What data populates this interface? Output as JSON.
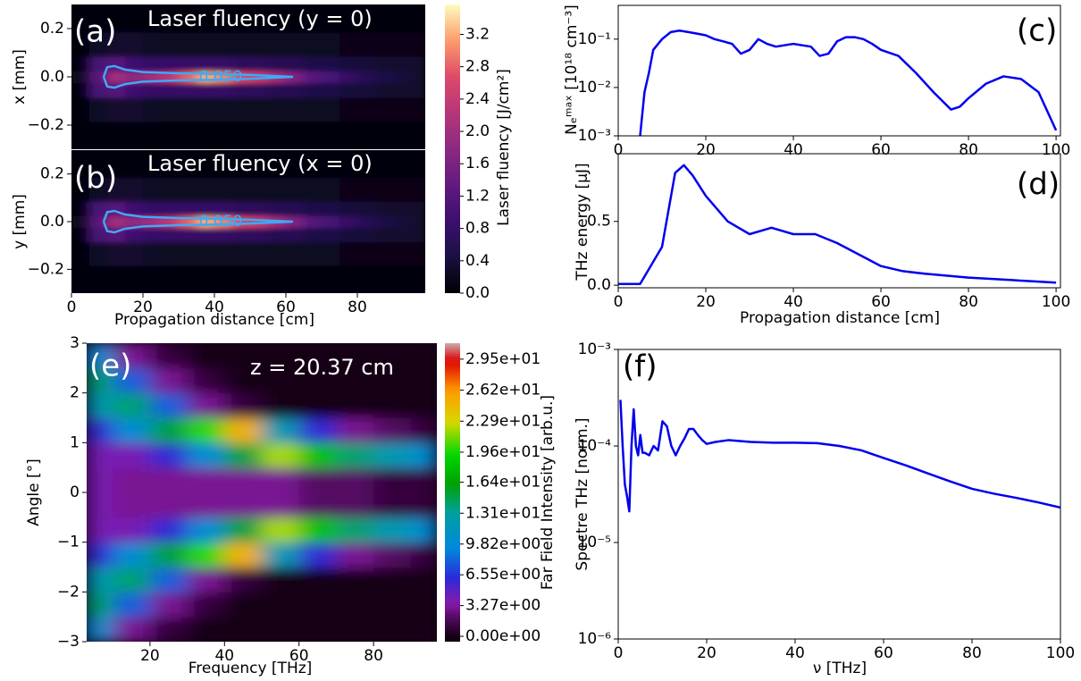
{
  "chart_data": [
    {
      "type": "heatmap",
      "panel_label": "(a)",
      "title": "Laser fluency (y = 0)",
      "ylabel": "x [mm]",
      "xlim": [
        0,
        99
      ],
      "ylim": [
        -0.3,
        0.3
      ],
      "yticks": [
        0.2,
        {
          "value": 0,
          "label": "0.0"
        },
        {
          "value": -0.2,
          "label": "−0.2"
        }
      ],
      "x": [
        2.5,
        7.5,
        12.5,
        17.5,
        22.5,
        27.5,
        32.5,
        37.5,
        42.5,
        47.5,
        52.5,
        57.5,
        62.5,
        67.5,
        72.5,
        77.5,
        82.5,
        87.5,
        92.5,
        97.5
      ],
      "y": [
        -0.25,
        -0.12,
        -0.05,
        0,
        0.05,
        0.12,
        0.25
      ],
      "z": [
        [
          0.02,
          0.05,
          0.05,
          0.05,
          0.05,
          0.05,
          0.05,
          0.05,
          0.05,
          0.05,
          0.05,
          0.05,
          0.05,
          0.05,
          0.05,
          0.05,
          0.05,
          0.05,
          0.05,
          0.05
        ],
        [
          0.05,
          0.25,
          0.3,
          0.3,
          0.25,
          0.2,
          0.2,
          0.2,
          0.2,
          0.2,
          0.2,
          0.2,
          0.2,
          0.2,
          0.2,
          0.15,
          0.15,
          0.15,
          0.15,
          0.15
        ],
        [
          0.1,
          1.0,
          1.2,
          0.9,
          0.8,
          0.8,
          0.8,
          0.8,
          0.8,
          0.7,
          0.7,
          0.6,
          0.6,
          0.5,
          0.5,
          0.4,
          0.4,
          0.3,
          0.3,
          0.3
        ],
        [
          0.2,
          1.2,
          2.0,
          1.8,
          2.0,
          2.3,
          2.8,
          3.2,
          3.0,
          2.6,
          2.4,
          2.0,
          1.6,
          1.2,
          1.0,
          0.8,
          0.6,
          0.5,
          0.4,
          0.3
        ],
        [
          0.1,
          1.0,
          1.2,
          0.9,
          0.8,
          0.8,
          0.8,
          0.8,
          0.8,
          0.7,
          0.7,
          0.6,
          0.6,
          0.5,
          0.5,
          0.4,
          0.4,
          0.3,
          0.3,
          0.3
        ],
        [
          0.05,
          0.25,
          0.3,
          0.3,
          0.25,
          0.2,
          0.2,
          0.2,
          0.2,
          0.2,
          0.2,
          0.2,
          0.2,
          0.2,
          0.2,
          0.15,
          0.15,
          0.15,
          0.15,
          0.15
        ],
        [
          0.02,
          0.05,
          0.05,
          0.05,
          0.05,
          0.05,
          0.05,
          0.05,
          0.05,
          0.05,
          0.05,
          0.05,
          0.05,
          0.05,
          0.05,
          0.05,
          0.05,
          0.05,
          0.05,
          0.05
        ]
      ],
      "colormap": "magma",
      "clim": [
        0,
        3.57
      ],
      "contour": {
        "level": {
          "value": 0.05,
          "label": "0.050"
        },
        "color": "#3fa9f5",
        "x": [
          9,
          10,
          12,
          15,
          20,
          30,
          40,
          50,
          62,
          50,
          40,
          30,
          20,
          15,
          12,
          10,
          9
        ],
        "y": [
          0,
          0.04,
          0.045,
          0.03,
          0.02,
          0.015,
          0.012,
          0.008,
          0,
          -0.008,
          -0.012,
          -0.015,
          -0.02,
          -0.03,
          -0.045,
          -0.04,
          0
        ]
      },
      "colorbar": {
        "label": "Laser fluency [J/cm²]",
        "ticks": [
          {
            "value": 0,
            "label": "0.0"
          },
          0.4,
          0.8,
          1.2,
          1.6,
          {
            "value": 2,
            "label": "2.0"
          },
          2.4,
          2.8,
          3.2
        ]
      }
    },
    {
      "type": "heatmap",
      "panel_label": "(b)",
      "title": "Laser fluency (x = 0)",
      "ylabel": "y [mm]",
      "xlabel": "Propagation distance [cm]",
      "xlim": [
        0,
        99
      ],
      "ylim": [
        -0.3,
        0.3
      ],
      "xticks": [
        0,
        20,
        40,
        60,
        80
      ],
      "yticks": [
        0.2,
        {
          "value": 0,
          "label": "0.0"
        },
        {
          "value": -0.2,
          "label": "−0.2"
        }
      ],
      "x": [
        2.5,
        7.5,
        12.5,
        17.5,
        22.5,
        27.5,
        32.5,
        37.5,
        42.5,
        47.5,
        52.5,
        57.5,
        62.5,
        67.5,
        72.5,
        77.5,
        82.5,
        87.5,
        92.5,
        97.5
      ],
      "y": [
        -0.25,
        -0.12,
        -0.05,
        0,
        0.05,
        0.12,
        0.25
      ],
      "z": [
        [
          0.02,
          0.05,
          0.05,
          0.05,
          0.05,
          0.05,
          0.05,
          0.05,
          0.05,
          0.05,
          0.05,
          0.05,
          0.05,
          0.05,
          0.05,
          0.05,
          0.05,
          0.05,
          0.05,
          0.05
        ],
        [
          0.05,
          0.25,
          0.3,
          0.3,
          0.25,
          0.2,
          0.2,
          0.2,
          0.2,
          0.2,
          0.2,
          0.2,
          0.2,
          0.2,
          0.2,
          0.15,
          0.15,
          0.15,
          0.15,
          0.15
        ],
        [
          0.1,
          1.0,
          1.2,
          0.9,
          0.8,
          0.8,
          0.8,
          0.8,
          0.8,
          0.7,
          0.7,
          0.6,
          0.6,
          0.5,
          0.5,
          0.4,
          0.4,
          0.3,
          0.3,
          0.3
        ],
        [
          0.2,
          1.2,
          2.0,
          1.8,
          2.0,
          2.3,
          2.8,
          3.2,
          3.0,
          2.6,
          2.4,
          2.0,
          1.6,
          1.2,
          1.0,
          0.8,
          0.6,
          0.5,
          0.4,
          0.3
        ],
        [
          0.1,
          1.0,
          1.2,
          0.9,
          0.8,
          0.8,
          0.8,
          0.8,
          0.8,
          0.7,
          0.7,
          0.6,
          0.6,
          0.5,
          0.5,
          0.4,
          0.4,
          0.3,
          0.3,
          0.3
        ],
        [
          0.05,
          0.25,
          0.3,
          0.3,
          0.25,
          0.2,
          0.2,
          0.2,
          0.2,
          0.2,
          0.2,
          0.2,
          0.2,
          0.2,
          0.2,
          0.15,
          0.15,
          0.15,
          0.15,
          0.15
        ],
        [
          0.02,
          0.05,
          0.05,
          0.05,
          0.05,
          0.05,
          0.05,
          0.05,
          0.05,
          0.05,
          0.05,
          0.05,
          0.05,
          0.05,
          0.05,
          0.05,
          0.05,
          0.05,
          0.05,
          0.05
        ]
      ],
      "colormap": "magma",
      "clim": [
        0,
        3.57
      ],
      "contour": {
        "level": {
          "value": 0.05,
          "label": "0.050"
        },
        "color": "#3fa9f5",
        "x": [
          9,
          10,
          12,
          15,
          20,
          30,
          40,
          50,
          62,
          50,
          40,
          30,
          20,
          15,
          12,
          10,
          9
        ],
        "y": [
          0,
          0.04,
          0.045,
          0.03,
          0.02,
          0.015,
          0.012,
          0.008,
          0,
          -0.008,
          -0.012,
          -0.015,
          -0.02,
          -0.03,
          -0.045,
          -0.04,
          0
        ]
      }
    },
    {
      "type": "line",
      "panel_label": "(c)",
      "ylabel": "Nₑᵐᵃˣ [10¹⁸ cm⁻³]",
      "ylog": true,
      "xlim": [
        0,
        101
      ],
      "ylim": [
        0.001,
        0.5
      ],
      "xticks": [
        0,
        20,
        40,
        60,
        80,
        100
      ],
      "yticks": [
        {
          "value": 0.001,
          "label": "10⁻³"
        },
        {
          "value": 0.01,
          "label": "10⁻²"
        },
        {
          "value": 0.1,
          "label": "10⁻¹"
        }
      ],
      "color": "#0000ee",
      "x": [
        4,
        5,
        6,
        7,
        8,
        10,
        12,
        14,
        16,
        18,
        20,
        22,
        24,
        26,
        28,
        30,
        32,
        34,
        36,
        40,
        44,
        46,
        48,
        50,
        52,
        54,
        56,
        58,
        60,
        64,
        68,
        72,
        76,
        78,
        80,
        84,
        88,
        92,
        96,
        100
      ],
      "values": [
        0.0008,
        0.001,
        0.008,
        0.02,
        0.06,
        0.1,
        0.14,
        0.15,
        0.14,
        0.13,
        0.12,
        0.1,
        0.09,
        0.08,
        0.05,
        0.06,
        0.1,
        0.08,
        0.07,
        0.08,
        0.07,
        0.045,
        0.05,
        0.09,
        0.11,
        0.11,
        0.1,
        0.08,
        0.06,
        0.045,
        0.02,
        0.008,
        0.0035,
        0.004,
        0.006,
        0.012,
        0.017,
        0.015,
        0.008,
        0.0013
      ]
    },
    {
      "type": "line",
      "panel_label": "(d)",
      "ylabel": "THz energy [μJ]",
      "xlabel": "Propagation distance [cm]",
      "xlim": [
        0,
        101
      ],
      "ylim": [
        -0.02,
        1.03
      ],
      "xticks": [
        0,
        20,
        40,
        60,
        80,
        100
      ],
      "yticks": [
        {
          "value": 0,
          "label": "0.0"
        },
        0.5
      ],
      "color": "#0000ee",
      "x": [
        0,
        5,
        10,
        13,
        15,
        17,
        20,
        25,
        30,
        35,
        40,
        45,
        50,
        55,
        60,
        65,
        70,
        80,
        90,
        100
      ],
      "values": [
        0.01,
        0.01,
        0.3,
        0.88,
        0.94,
        0.86,
        0.7,
        0.5,
        0.4,
        0.45,
        0.4,
        0.4,
        0.33,
        0.24,
        0.15,
        0.11,
        0.09,
        0.06,
        0.04,
        0.02
      ]
    },
    {
      "type": "heatmap",
      "panel_label": "(e)",
      "annotation": "z = 20.37 cm",
      "ylabel": "Angle [°]",
      "xlabel": "Frequency [THz]",
      "xlim": [
        3,
        97
      ],
      "ylim": [
        -3,
        3
      ],
      "xticks": [
        20,
        40,
        60,
        80
      ],
      "yticks": [
        3,
        2,
        1,
        0,
        {
          "value": -1,
          "label": "−1"
        },
        {
          "value": -2,
          "label": "−2"
        },
        {
          "value": -3,
          "label": "−3"
        }
      ],
      "x": [
        5,
        15,
        25,
        35,
        45,
        55,
        65,
        75,
        85,
        95
      ],
      "y": [
        -2.75,
        -2.25,
        -1.75,
        -1.25,
        -0.75,
        -0.25,
        0.25,
        0.75,
        1.25,
        1.75,
        2.25,
        2.75
      ],
      "z": [
        [
          10,
          3,
          1,
          0,
          0,
          0,
          0,
          0,
          0,
          0
        ],
        [
          14,
          8,
          3,
          1,
          0,
          0,
          0,
          0,
          0,
          0
        ],
        [
          12,
          14,
          8,
          3,
          1,
          0,
          0,
          0,
          0,
          0
        ],
        [
          6,
          10,
          15,
          20,
          25,
          12,
          6,
          3,
          2,
          1
        ],
        [
          4,
          4,
          6,
          10,
          15,
          22,
          18,
          14,
          12,
          10
        ],
        [
          4,
          3,
          3,
          3,
          3,
          3,
          2,
          2,
          1,
          1
        ],
        [
          4,
          3,
          3,
          3,
          3,
          3,
          2,
          2,
          1,
          1
        ],
        [
          4,
          4,
          6,
          10,
          15,
          22,
          18,
          14,
          12,
          10
        ],
        [
          6,
          10,
          15,
          20,
          25,
          12,
          6,
          3,
          2,
          1
        ],
        [
          12,
          14,
          8,
          3,
          1,
          0,
          0,
          0,
          0,
          0
        ],
        [
          14,
          8,
          3,
          1,
          0,
          0,
          0,
          0,
          0,
          0
        ],
        [
          10,
          3,
          1,
          0,
          0,
          0,
          0,
          0,
          0,
          0
        ]
      ],
      "colormap": "nipy_spectral",
      "clim": [
        0,
        31.2
      ],
      "colorbar": {
        "label": "Far Field Intensity [arb.u.]",
        "ticks": [
          {
            "value": 0,
            "label": "0.00e+00"
          },
          {
            "value": 3.27,
            "label": "3.27e+00"
          },
          {
            "value": 6.55,
            "label": "6.55e+00"
          },
          {
            "value": 9.82,
            "label": "9.82e+00"
          },
          {
            "value": 13.1,
            "label": "1.31e+01"
          },
          {
            "value": 16.4,
            "label": "1.64e+01"
          },
          {
            "value": 19.6,
            "label": "1.96e+01"
          },
          {
            "value": 22.9,
            "label": "2.29e+01"
          },
          {
            "value": 26.2,
            "label": "2.62e+01"
          },
          {
            "value": 29.5,
            "label": "2.95e+01"
          }
        ]
      }
    },
    {
      "type": "line",
      "panel_label": "(f)",
      "ylabel": "Spectre THz [norm.]",
      "xlabel": "ν [THz]",
      "ylog": true,
      "xlim": [
        0,
        100
      ],
      "ylim": [
        1e-06,
        0.001
      ],
      "xticks": [
        0,
        20,
        40,
        60,
        80,
        100
      ],
      "yticks": [
        {
          "value": 1e-06,
          "label": "10⁻⁶"
        },
        {
          "value": 1e-05,
          "label": "10⁻⁵"
        },
        {
          "value": 0.0001,
          "label": "10⁻⁴"
        },
        {
          "value": 0.001,
          "label": "10⁻³"
        }
      ],
      "color": "#0000ee",
      "x": [
        0.5,
        1,
        1.5,
        2,
        2.5,
        3,
        3.5,
        4,
        4.5,
        5,
        5.5,
        6,
        7,
        8,
        9,
        10,
        11,
        12,
        13,
        14,
        15,
        16,
        17,
        18,
        19,
        20,
        22,
        25,
        30,
        35,
        40,
        45,
        50,
        55,
        60,
        65,
        70,
        75,
        80,
        85,
        90,
        95,
        100
      ],
      "values": [
        0.0003,
        0.0001,
        4e-05,
        3e-05,
        2.1e-05,
        0.0001,
        0.00024,
        0.0001,
        8e-05,
        0.00013,
        8.5e-05,
        8.5e-05,
        8e-05,
        0.0001,
        9e-05,
        0.00018,
        0.00016,
        0.0001,
        8e-05,
        0.0001,
        0.00012,
        0.00015,
        0.00015,
        0.00013,
        0.000115,
        0.000105,
        0.00011,
        0.000115,
        0.00011,
        0.000108,
        0.000108,
        0.000107,
        0.0001,
        9e-05,
        7.5e-05,
        6.3e-05,
        5.2e-05,
        4.3e-05,
        3.6e-05,
        3.2e-05,
        2.9e-05,
        2.6e-05,
        2.3e-05
      ]
    }
  ]
}
